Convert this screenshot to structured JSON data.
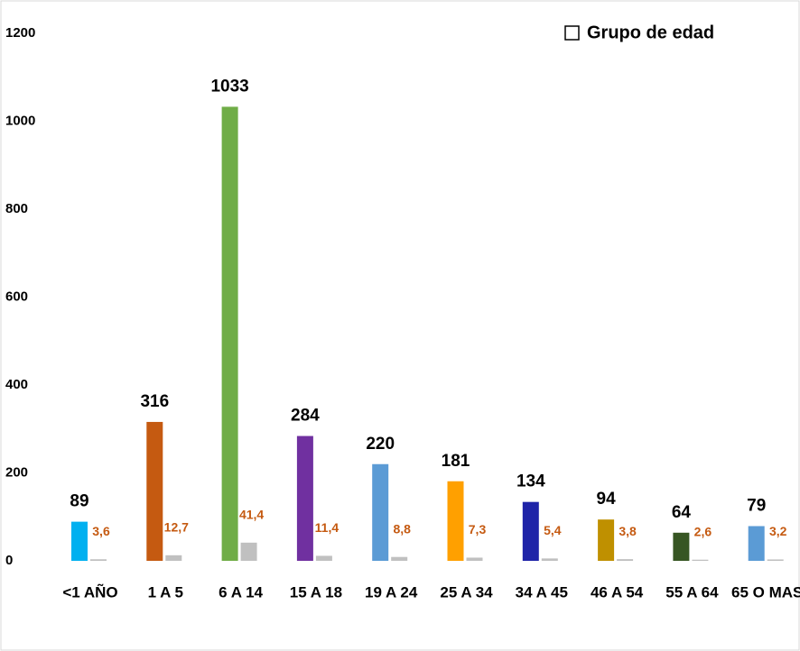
{
  "chart_data": {
    "type": "bar",
    "categories": [
      "<1 AÑO",
      "1 A 5",
      "6 A 14",
      "15 A 18",
      "19 A 24",
      "25 A 34",
      "34 A 45",
      "46 A 54",
      "55 A 64",
      "65 O MAS"
    ],
    "series": [
      {
        "name": "Grupo de edad",
        "colors": [
          "#00b0f0",
          "#c55a11",
          "#70ad47",
          "#7030a0",
          "#5b9bd5",
          "#ffa000",
          "#1f24a8",
          "#bf9000",
          "#375623",
          "#5b9bd5"
        ],
        "values": [
          89,
          316,
          1033,
          284,
          220,
          181,
          134,
          94,
          64,
          79
        ]
      },
      {
        "color": "#c0c0c0",
        "label_color": "#c55a11",
        "values": [
          3.6,
          12.7,
          41.4,
          11.4,
          8.8,
          7.3,
          5.4,
          3.8,
          2.6,
          3.2
        ],
        "value_labels": [
          "3,6",
          "12,7",
          "41,4",
          "11,4",
          "8,8",
          "7,3",
          "5,4",
          "3,8",
          "2,6",
          "3,2"
        ]
      }
    ],
    "ylim": [
      0,
      1200
    ],
    "yticks": [
      0,
      200,
      400,
      600,
      800,
      1000,
      1200
    ]
  }
}
